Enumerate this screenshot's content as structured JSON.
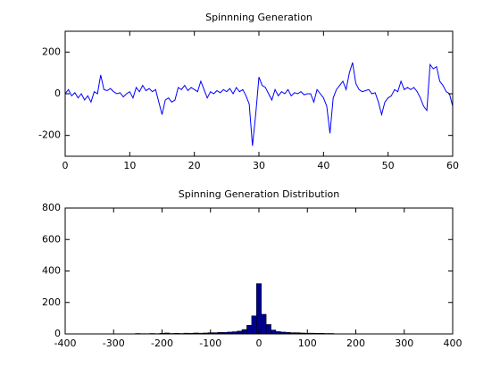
{
  "chart_data": [
    {
      "type": "line",
      "title": "Spinnning Generation",
      "color": "#0000ff",
      "x": [
        0,
        0.5,
        1,
        1.5,
        2,
        2.5,
        3,
        3.5,
        4,
        4.5,
        5,
        5.5,
        6,
        6.5,
        7,
        7.5,
        8,
        8.5,
        9,
        9.5,
        10,
        10.5,
        11,
        11.5,
        12,
        12.5,
        13,
        13.5,
        14,
        14.5,
        15,
        15.5,
        16,
        16.5,
        17,
        17.5,
        18,
        18.5,
        19,
        19.5,
        20,
        20.5,
        21,
        21.5,
        22,
        22.5,
        23,
        23.5,
        24,
        24.5,
        25,
        25.5,
        26,
        26.5,
        27,
        27.5,
        28,
        28.5,
        29,
        29.5,
        30,
        30.5,
        31,
        31.5,
        32,
        32.5,
        33,
        33.5,
        34,
        34.5,
        35,
        35.5,
        36,
        36.5,
        37,
        37.5,
        38,
        38.5,
        39,
        39.5,
        40,
        40.5,
        41,
        41.5,
        42,
        42.5,
        43,
        43.5,
        44,
        44.5,
        45,
        45.5,
        46,
        46.5,
        47,
        47.5,
        48,
        48.5,
        49,
        49.5,
        50,
        50.5,
        51,
        51.5,
        52,
        52.5,
        53,
        53.5,
        54,
        54.5,
        55,
        55.5,
        56,
        56.5,
        57,
        57.5,
        58,
        58.5,
        59,
        59.5,
        60
      ],
      "values": [
        0,
        20,
        -10,
        5,
        -20,
        0,
        -30,
        -10,
        -40,
        10,
        0,
        90,
        20,
        15,
        25,
        10,
        0,
        5,
        -15,
        0,
        10,
        -20,
        30,
        10,
        40,
        15,
        25,
        10,
        20,
        -40,
        -100,
        -30,
        -20,
        -40,
        -30,
        30,
        20,
        40,
        15,
        30,
        20,
        10,
        60,
        20,
        -20,
        10,
        0,
        15,
        5,
        20,
        10,
        25,
        0,
        30,
        10,
        20,
        -10,
        -50,
        -250,
        -100,
        80,
        40,
        30,
        0,
        -30,
        20,
        -10,
        10,
        0,
        20,
        -10,
        5,
        0,
        10,
        -5,
        0,
        0,
        -40,
        20,
        0,
        -20,
        -60,
        -190,
        -20,
        20,
        40,
        60,
        20,
        100,
        150,
        50,
        20,
        10,
        15,
        20,
        0,
        5,
        -40,
        -100,
        -40,
        -20,
        -10,
        20,
        10,
        60,
        20,
        30,
        20,
        30,
        10,
        -20,
        -60,
        -80,
        140,
        120,
        130,
        60,
        40,
        10,
        0,
        -60
      ],
      "xlim": [
        0,
        60
      ],
      "xticks": [
        0,
        10,
        20,
        30,
        40,
        50,
        60
      ],
      "ylim": [
        -300,
        300
      ],
      "yticks": [
        -200,
        0,
        200
      ]
    },
    {
      "type": "histogram",
      "title": "Spinning Generation Distribution",
      "color": "#00008f",
      "bins": [
        -255,
        -245,
        -235,
        -225,
        -215,
        -205,
        -195,
        -185,
        -175,
        -165,
        -155,
        -145,
        -135,
        -125,
        -115,
        -105,
        -95,
        -85,
        -75,
        -65,
        -55,
        -45,
        -35,
        -25,
        -15,
        -5,
        5,
        15,
        25,
        35,
        45,
        55,
        65,
        75,
        85,
        95,
        105,
        115,
        125,
        135,
        145,
        155
      ],
      "values": [
        3,
        2,
        2,
        3,
        2,
        4,
        6,
        3,
        4,
        3,
        5,
        4,
        6,
        5,
        6,
        8,
        8,
        10,
        10,
        12,
        14,
        18,
        28,
        55,
        115,
        320,
        125,
        60,
        25,
        15,
        12,
        10,
        8,
        8,
        6,
        5,
        5,
        4,
        4,
        3,
        3
      ],
      "xlim": [
        -400,
        400
      ],
      "xticks": [
        -400,
        -300,
        -200,
        -100,
        0,
        100,
        200,
        300,
        400
      ],
      "ylim": [
        0,
        800
      ],
      "yticks": [
        0,
        200,
        400,
        600,
        800
      ]
    }
  ]
}
